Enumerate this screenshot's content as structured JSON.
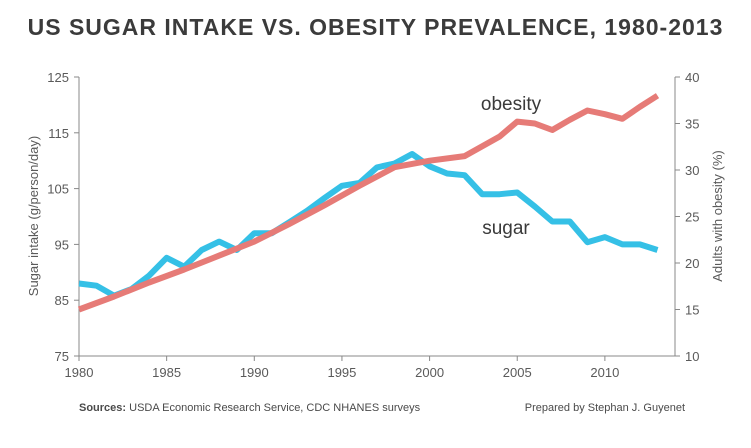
{
  "chart_data": {
    "type": "line",
    "title": "US SUGAR INTAKE VS. OBESITY PREVALENCE, 1980-2013",
    "xlim": [
      1980,
      2014
    ],
    "x_ticks": [
      "1980",
      "1985",
      "1990",
      "1995",
      "2000",
      "2005",
      "2010"
    ],
    "y_left": {
      "label": "Sugar intake (g/person/day)",
      "lim": [
        75,
        125
      ],
      "ticks": [
        "75",
        "85",
        "95",
        "105",
        "115",
        "125"
      ]
    },
    "y_right": {
      "label": "Adults with obesity (%)",
      "lim": [
        10,
        40
      ],
      "ticks": [
        "10",
        "15",
        "20",
        "25",
        "30",
        "35",
        "40"
      ]
    },
    "series": [
      {
        "name": "sugar",
        "axis": "left",
        "color": "#35c0e6",
        "x": [
          1980,
          1981,
          1982,
          1983,
          1984,
          1985,
          1986,
          1987,
          1988,
          1989,
          1990,
          1991,
          1992,
          1993,
          1994,
          1995,
          1996,
          1997,
          1998,
          1999,
          2000,
          2001,
          2002,
          2003,
          2004,
          2005,
          2006,
          2007,
          2008,
          2009,
          2010,
          2011,
          2012,
          2013
        ],
        "y": [
          88,
          87.6,
          85.8,
          87,
          89.4,
          92.6,
          91,
          94,
          95.5,
          94,
          97,
          97,
          99,
          101,
          103.3,
          105.5,
          106,
          108.8,
          109.5,
          111.2,
          109,
          107.7,
          107.4,
          104,
          104,
          104.3,
          101.8,
          99.1,
          99.1,
          95.4,
          96.3,
          95,
          95,
          94
        ]
      },
      {
        "name": "obesity",
        "axis": "right",
        "color": "#e67b77",
        "x": [
          1980,
          1982,
          1984,
          1986,
          1988,
          1990,
          1992,
          1994,
          1996,
          1998,
          2000,
          2002,
          2004,
          2005,
          2006,
          2007,
          2008,
          2009,
          2010,
          2011,
          2012,
          2013
        ],
        "y": [
          15,
          16.4,
          17.9,
          19.3,
          20.8,
          22.3,
          24.2,
          26.2,
          28.3,
          30.3,
          31,
          31.5,
          33.6,
          35.2,
          35,
          34.3,
          35.4,
          36.4,
          36,
          35.5,
          36.8,
          38
        ]
      }
    ],
    "grid": false,
    "legend": "inline labels"
  },
  "footer": {
    "sources_label": "Sources:",
    "sources_text": " USDA Economic Research Service, CDC NHANES surveys",
    "credit": "Prepared by Stephan J. Guyenet"
  }
}
